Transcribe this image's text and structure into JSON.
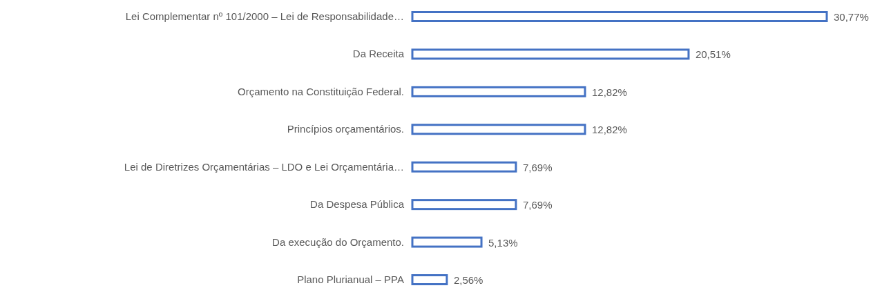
{
  "chart_data": {
    "type": "bar",
    "orientation": "horizontal",
    "categories": [
      "Lei Complementar nº 101/2000 – Lei de Responsabilidade…",
      "Da Receita",
      "Orçamento na Constituição Federal.",
      "Princípios orçamentários.",
      "Lei de Diretrizes Orçamentárias – LDO e Lei Orçamentária…",
      "Da Despesa Pública",
      "Da execução do Orçamento.",
      "Plano Plurianual – PPA"
    ],
    "values": [
      30.77,
      20.51,
      12.82,
      12.82,
      7.69,
      7.69,
      5.13,
      2.56
    ],
    "value_labels": [
      "30,77%",
      "20,51%",
      "12,82%",
      "12,82%",
      "7,69%",
      "7,69%",
      "5,13%",
      "2,56%"
    ],
    "color": "#4472c4"
  }
}
